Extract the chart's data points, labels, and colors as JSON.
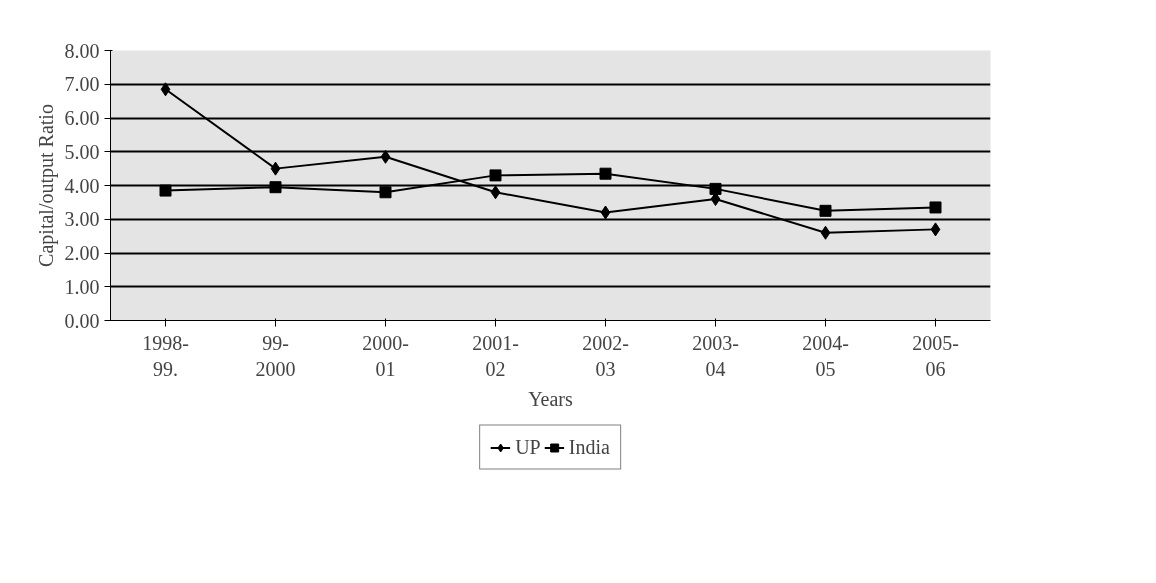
{
  "chart_data": {
    "type": "line",
    "xlabel": "Years",
    "ylabel": "Capital/output Ratio",
    "categories": [
      "1998-\n99.",
      "99-\n2000",
      "2000-\n01",
      "2001-\n02",
      "2002-\n03",
      "2003-\n04",
      "2004-\n05",
      "2005-\n06"
    ],
    "series": [
      {
        "name": "UP",
        "color": "#000000",
        "marker": "diamond",
        "values": [
          6.85,
          4.5,
          4.85,
          3.8,
          3.2,
          3.6,
          2.6,
          2.7
        ]
      },
      {
        "name": "India",
        "color": "#000000",
        "marker": "square",
        "values": [
          3.85,
          3.95,
          3.8,
          4.3,
          4.35,
          3.9,
          3.25,
          3.35
        ]
      }
    ],
    "ylim": [
      0,
      8
    ],
    "yticks": [
      {
        "value": 0,
        "label": "0.00"
      },
      {
        "value": 1,
        "label": "1.00"
      },
      {
        "value": 2,
        "label": "2.00"
      },
      {
        "value": 3,
        "label": "3.00"
      },
      {
        "value": 4,
        "label": "4.00"
      },
      {
        "value": 5,
        "label": "5.00"
      },
      {
        "value": 6,
        "label": "6.00"
      },
      {
        "value": 7,
        "label": "7.00"
      },
      {
        "value": 8,
        "label": "8.00"
      }
    ],
    "grid": "y",
    "legend": "bottom"
  }
}
